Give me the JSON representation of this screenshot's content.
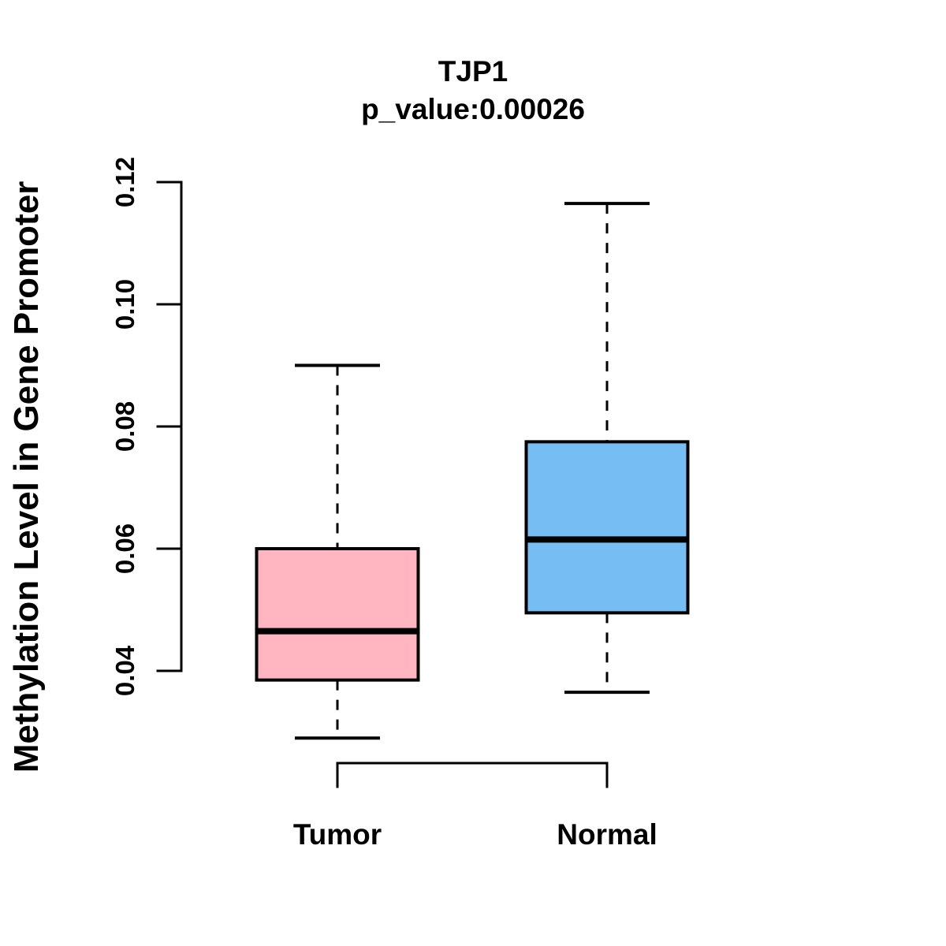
{
  "chart_data": {
    "type": "boxplot",
    "title": "TJP1",
    "subtitle": "p_value:0.00026",
    "ylabel": "Methylation Level in Gene Promoter",
    "xlabel": "",
    "ylim": [
      0.04,
      0.12
    ],
    "yticks": [
      0.04,
      0.06,
      0.08,
      0.1,
      0.12
    ],
    "ytick_labels": [
      "0.04",
      "0.06",
      "0.08",
      "0.10",
      "0.12"
    ],
    "categories": [
      "Tumor",
      "Normal"
    ],
    "grid": false,
    "legend": "none",
    "stroke_color": "#000000",
    "background_color": "#ffffff",
    "series": [
      {
        "name": "Tumor",
        "color": "#FFB6C1",
        "whisker_low": 0.029,
        "q1": 0.0385,
        "median": 0.0465,
        "q3": 0.06,
        "whisker_high": 0.09
      },
      {
        "name": "Normal",
        "color": "#76BDF3",
        "whisker_low": 0.0365,
        "q1": 0.0495,
        "median": 0.0615,
        "q3": 0.0775,
        "whisker_high": 0.1165
      }
    ]
  }
}
